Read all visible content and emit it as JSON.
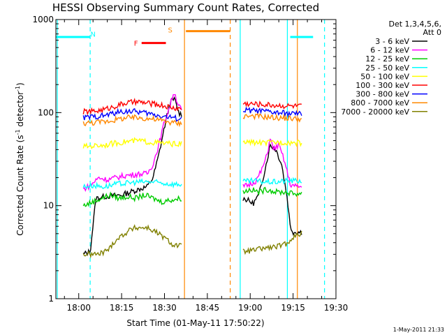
{
  "chart_data": {
    "type": "line",
    "title": "HESSI Observing Summary Count Rates, Corrected",
    "xlabel": "Start Time (01-May-11 17:50:22)",
    "ylabel": "Corrected Count Rate (s",
    "ylabel_sup1": "-1",
    "ylabel_mid": " detector",
    "ylabel_sup2": "-1",
    "ylabel_end": ")",
    "yscale": "log",
    "xlim": [
      -8,
      90
    ],
    "ylim": [
      1,
      1000
    ],
    "x_unit": "minutes after 18:00",
    "xticks": [
      {
        "x": 0,
        "label": "18:00"
      },
      {
        "x": 15,
        "label": "18:15"
      },
      {
        "x": 30,
        "label": "18:30"
      },
      {
        "x": 45,
        "label": "18:45"
      },
      {
        "x": 60,
        "label": "19:00"
      },
      {
        "x": 75,
        "label": "19:15"
      },
      {
        "x": 90,
        "label": "19:30"
      }
    ],
    "yticks": [
      {
        "y": 1,
        "label": "1"
      },
      {
        "y": 10,
        "label": "10"
      },
      {
        "y": 100,
        "label": "100"
      },
      {
        "y": 1000,
        "label": "1000"
      }
    ],
    "legend_title": [
      "Det 1,3,4,5,6,",
      "Att 0"
    ],
    "legend_placement": "outside-right",
    "series": [
      {
        "name": "3 - 6 keV",
        "color": "#000000",
        "segments": [
          [
            [
              1.6,
              3
            ],
            [
              4,
              3.2
            ],
            [
              6,
              12
            ],
            [
              9,
              12.5
            ],
            [
              12,
              12.8
            ],
            [
              15,
              13
            ],
            [
              18,
              14
            ],
            [
              21,
              15
            ],
            [
              24,
              16
            ],
            [
              26,
              20
            ],
            [
              28,
              35
            ],
            [
              30,
              70
            ],
            [
              32,
              130
            ],
            [
              33.5,
              140
            ],
            [
              35,
              100
            ],
            [
              36,
              95
            ]
          ],
          [
            [
              57.5,
              12
            ],
            [
              59,
              11.5
            ],
            [
              61,
              10.5
            ],
            [
              63,
              13
            ],
            [
              64.5,
              20
            ],
            [
              66,
              32
            ],
            [
              67,
              45
            ],
            [
              69,
              40
            ],
            [
              71,
              28
            ],
            [
              73,
              12
            ],
            [
              74,
              6
            ],
            [
              75,
              5.2
            ],
            [
              78,
              5.2
            ]
          ]
        ]
      },
      {
        "name": "6 - 12 keV",
        "color": "#ff00ff",
        "segments": [
          [
            [
              1.6,
              15
            ],
            [
              4,
              16.5
            ],
            [
              7,
              20
            ],
            [
              10,
              19
            ],
            [
              13,
              20
            ],
            [
              16,
              21
            ],
            [
              19,
              21.5
            ],
            [
              22,
              22
            ],
            [
              24,
              22
            ],
            [
              26,
              28
            ],
            [
              28,
              45
            ],
            [
              30,
              80
            ],
            [
              32,
              120
            ],
            [
              33.3,
              170
            ],
            [
              34.5,
              130
            ],
            [
              36,
              105
            ]
          ],
          [
            [
              57.5,
              16
            ],
            [
              60,
              17
            ],
            [
              62,
              18.5
            ],
            [
              64,
              24
            ],
            [
              66,
              36
            ],
            [
              67,
              55
            ],
            [
              68,
              40
            ],
            [
              70,
              45
            ],
            [
              72,
              30
            ],
            [
              74,
              17
            ],
            [
              76,
              16
            ],
            [
              78,
              16
            ]
          ]
        ]
      },
      {
        "name": "12 - 25 keV",
        "color": "#00cc00",
        "segments": [
          [
            [
              1.6,
              10
            ],
            [
              5,
              11
            ],
            [
              8,
              12
            ],
            [
              11,
              13
            ],
            [
              14,
              12
            ],
            [
              17,
              12.5
            ],
            [
              20,
              12
            ],
            [
              23,
              13
            ],
            [
              26,
              12
            ],
            [
              29,
              11
            ],
            [
              32,
              11.5
            ],
            [
              36,
              12
            ]
          ],
          [
            [
              57.5,
              14
            ],
            [
              60,
              15
            ],
            [
              63,
              14
            ],
            [
              66,
              15
            ],
            [
              69,
              14
            ],
            [
              72,
              14
            ],
            [
              75,
              13.5
            ],
            [
              78,
              13.5
            ]
          ]
        ]
      },
      {
        "name": "25 - 50 keV",
        "color": "#00ffff",
        "segments": [
          [
            [
              1.6,
              16
            ],
            [
              5,
              16.5
            ],
            [
              9,
              16
            ],
            [
              13,
              17
            ],
            [
              17,
              17.5
            ],
            [
              21,
              18
            ],
            [
              25,
              18
            ],
            [
              29,
              17.5
            ],
            [
              33,
              17
            ],
            [
              36,
              17
            ]
          ],
          [
            [
              57.5,
              18
            ],
            [
              61,
              18.5
            ],
            [
              65,
              18
            ],
            [
              69,
              18
            ],
            [
              73,
              18.5
            ],
            [
              78,
              18.5
            ]
          ]
        ]
      },
      {
        "name": "50 - 100 keV",
        "color": "#ffff00",
        "segments": [
          [
            [
              1.6,
              43
            ],
            [
              5,
              44
            ],
            [
              9,
              45
            ],
            [
              13,
              47
            ],
            [
              17,
              49
            ],
            [
              21,
              50
            ],
            [
              25,
              48
            ],
            [
              29,
              47
            ],
            [
              33,
              46
            ],
            [
              36,
              46
            ]
          ],
          [
            [
              57.5,
              48
            ],
            [
              61,
              48
            ],
            [
              65,
              47
            ],
            [
              69,
              48
            ],
            [
              73,
              48
            ],
            [
              78,
              47
            ]
          ]
        ]
      },
      {
        "name": "100 - 300 keV",
        "color": "#ff0000",
        "segments": [
          [
            [
              1.6,
              102
            ],
            [
              5,
              103
            ],
            [
              9,
              108
            ],
            [
              13,
              118
            ],
            [
              17,
              128
            ],
            [
              21,
              130
            ],
            [
              25,
              125
            ],
            [
              29,
              120
            ],
            [
              33,
              112
            ],
            [
              36,
              110
            ]
          ],
          [
            [
              57.5,
              125
            ],
            [
              61,
              124
            ],
            [
              65,
              122
            ],
            [
              69,
              120
            ],
            [
              73,
              118
            ],
            [
              78,
              117
            ]
          ]
        ]
      },
      {
        "name": "300 - 800 keV",
        "color": "#0000ff",
        "segments": [
          [
            [
              1.6,
              88
            ],
            [
              5,
              90
            ],
            [
              9,
              93
            ],
            [
              13,
              100
            ],
            [
              17,
              104
            ],
            [
              21,
              102
            ],
            [
              25,
              97
            ],
            [
              29,
              92
            ],
            [
              33,
              88
            ],
            [
              36,
              85
            ]
          ],
          [
            [
              57.5,
              106
            ],
            [
              61,
              105
            ],
            [
              65,
              103
            ],
            [
              69,
              100
            ],
            [
              73,
              98
            ],
            [
              78,
              96
            ]
          ]
        ]
      },
      {
        "name": "800 - 7000 keV",
        "color": "#ff8800",
        "segments": [
          [
            [
              1.6,
              77
            ],
            [
              5,
              78
            ],
            [
              9,
              80
            ],
            [
              13,
              84
            ],
            [
              17,
              88
            ],
            [
              21,
              88
            ],
            [
              25,
              86
            ],
            [
              29,
              82
            ],
            [
              33,
              78
            ],
            [
              36,
              76
            ]
          ],
          [
            [
              57.5,
              92
            ],
            [
              61,
              92
            ],
            [
              65,
              90
            ],
            [
              69,
              88
            ],
            [
              73,
              87
            ],
            [
              78,
              85
            ]
          ]
        ]
      },
      {
        "name": "7000 - 20000 keV",
        "color": "#808000",
        "segments": [
          [
            [
              1.6,
              3
            ],
            [
              5,
              3
            ],
            [
              7,
              3
            ],
            [
              9,
              3.2
            ],
            [
              11,
              3.5
            ],
            [
              12,
              4
            ],
            [
              14,
              4.5
            ],
            [
              16,
              5
            ],
            [
              18,
              5.5
            ],
            [
              20,
              5.8
            ],
            [
              24,
              5.8
            ],
            [
              27,
              5.2
            ],
            [
              30,
              4.5
            ],
            [
              33,
              3.8
            ],
            [
              36,
              3.7
            ]
          ],
          [
            [
              57.5,
              3.2
            ],
            [
              61,
              3.3
            ],
            [
              65,
              3.5
            ],
            [
              69,
              3.6
            ],
            [
              72,
              3.8
            ],
            [
              73,
              4.0
            ],
            [
              75,
              4.6
            ],
            [
              78,
              5.0
            ]
          ]
        ]
      }
    ],
    "annotations": [
      {
        "label": "N",
        "color": "#00ffff",
        "x": 5,
        "y": 700
      },
      {
        "label": "F",
        "color": "#ff0000",
        "x": 20,
        "y": 560
      },
      {
        "label": "S",
        "color": "#ff8800",
        "x": 32,
        "y": 780
      }
    ],
    "state_bars": [
      {
        "flag": "N",
        "color": "#00ffff",
        "x_start": -8,
        "x_end": 4,
        "y": 650
      },
      {
        "flag": "N",
        "color": "#00ffff",
        "x_start": 74,
        "x_end": 82,
        "y": 650
      },
      {
        "flag": "F",
        "color": "#ff0000",
        "x_start": 22,
        "x_end": 30.5,
        "y": 560
      },
      {
        "flag": "S",
        "color": "#ff8800",
        "x_start": 37.5,
        "x_end": 53,
        "y": 750
      }
    ],
    "state_lines": [
      {
        "color": "#00ffff",
        "x": -7.5,
        "style": "solid"
      },
      {
        "color": "#00ffff",
        "x": 4,
        "style": "dashed"
      },
      {
        "color": "#ff8800",
        "x": 37,
        "style": "solid"
      },
      {
        "color": "#ff8800",
        "x": 53,
        "style": "dashed"
      },
      {
        "color": "#00ffff",
        "x": 56.5,
        "style": "solid"
      },
      {
        "color": "#00ffff",
        "x": 73,
        "style": "solid"
      },
      {
        "color": "#ff8800",
        "x": 76.5,
        "style": "solid"
      },
      {
        "color": "#00ffff",
        "x": 86,
        "style": "dashed"
      }
    ]
  },
  "footer": {
    "timestamp": "1-May-2011 21:33"
  }
}
